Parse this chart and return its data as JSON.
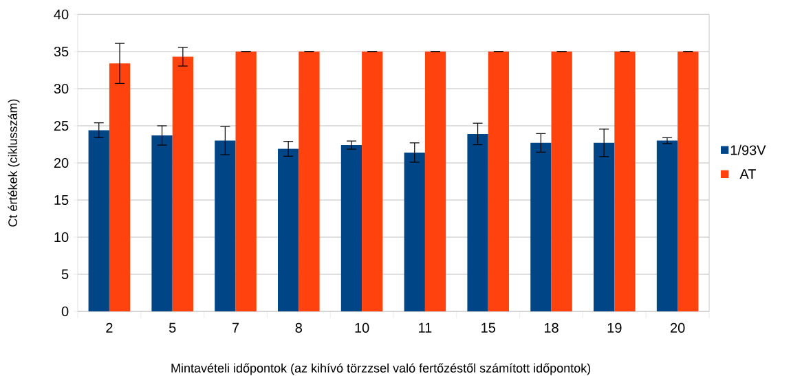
{
  "chart_data": {
    "type": "bar",
    "xlabel": "Mintavételi időpontok (az kihívó törzzsel való fertőzéstől számított időpontok)",
    "ylabel": "Ct értékek (ciklusszám)",
    "categories": [
      "2",
      "5",
      "7",
      "8",
      "10",
      "11",
      "15",
      "18",
      "19",
      "20"
    ],
    "series": [
      {
        "name": "1/93V",
        "color": "#004586",
        "values": [
          24.4,
          23.7,
          23.0,
          21.9,
          22.4,
          21.4,
          23.9,
          22.7,
          22.7,
          23.0
        ],
        "errors": [
          1.0,
          1.3,
          1.9,
          1.0,
          0.55,
          1.3,
          1.45,
          1.25,
          1.85,
          0.4
        ]
      },
      {
        "name": "AT",
        "color": "#ff420e",
        "values": [
          33.4,
          34.3,
          35,
          35,
          35,
          35,
          35,
          35,
          35,
          35
        ],
        "errors": [
          2.7,
          1.25,
          0,
          0,
          0,
          0,
          0,
          0,
          0,
          0
        ]
      }
    ],
    "ylim": [
      0,
      40
    ],
    "yticks": [
      0,
      5,
      10,
      15,
      20,
      25,
      30,
      35,
      40
    ],
    "grid": "y",
    "legend": "right"
  }
}
